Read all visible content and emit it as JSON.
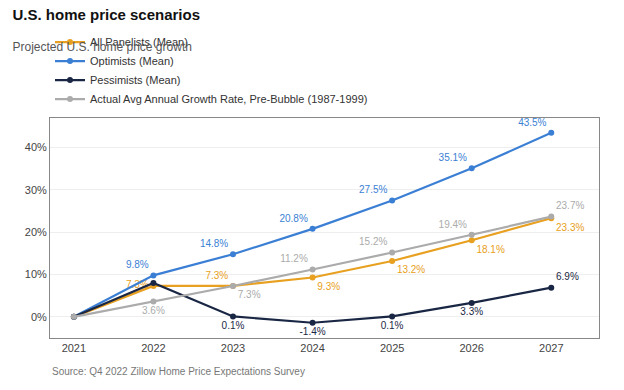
{
  "chart_data": {
    "type": "line",
    "title": "U.S. home price scenarios",
    "subtitle": "Projected U.S. home price growth",
    "annotations": [
      "Source: Q4 2022 Zillow Home Price Expectations Survey"
    ],
    "x": [
      2021,
      2022,
      2023,
      2024,
      2025,
      2026,
      2027
    ],
    "series": [
      {
        "name": "All Panelists (Mean)",
        "color": "#E8A020",
        "values": [
          0.0,
          7.3,
          7.3,
          9.3,
          13.2,
          18.1,
          23.3
        ],
        "value_labels": [
          null,
          "7.3%",
          "7.3%",
          "9.3%",
          "13.2%",
          "18.1%",
          "23.3%"
        ]
      },
      {
        "name": "Optimists (Mean)",
        "color": "#3B7FD4",
        "values": [
          0.0,
          9.8,
          14.8,
          20.8,
          27.5,
          35.1,
          43.5
        ],
        "value_labels": [
          null,
          "9.8%",
          "14.8%",
          "20.8%",
          "27.5%",
          "35.1%",
          "43.5%"
        ]
      },
      {
        "name": "Pessimists (Mean)",
        "color": "#1A2744",
        "values": [
          0.0,
          8.0,
          0.1,
          -1.4,
          0.1,
          3.3,
          6.9
        ],
        "value_labels": [
          null,
          null,
          "0.1%",
          "-1.4%",
          "0.1%",
          "3.3%",
          "6.9%"
        ]
      },
      {
        "name": "Actual Avg Annual Growth Rate, Pre-Bubble (1987-1999)",
        "color": "#ABABAB",
        "values": [
          0.0,
          3.6,
          7.3,
          11.2,
          15.2,
          19.4,
          23.7
        ],
        "value_labels": [
          null,
          "3.6%",
          "7.3%",
          "11.2%",
          "15.2%",
          "19.4%",
          "23.7%"
        ]
      }
    ],
    "xlim": [
      2020.7,
      2027.6
    ],
    "xticks": [
      2021,
      2022,
      2023,
      2024,
      2025,
      2026,
      2027
    ],
    "ylim": [
      -5,
      47
    ],
    "yticks": [
      {
        "value": 0,
        "label": "0%"
      },
      {
        "value": 10,
        "label": "10%"
      },
      {
        "value": 20,
        "label": "20%"
      },
      {
        "value": 30,
        "label": "30%"
      },
      {
        "value": 40,
        "label": "40%"
      }
    ],
    "grid": "y",
    "legend": "top",
    "marker": "circle",
    "data_labels": true
  }
}
